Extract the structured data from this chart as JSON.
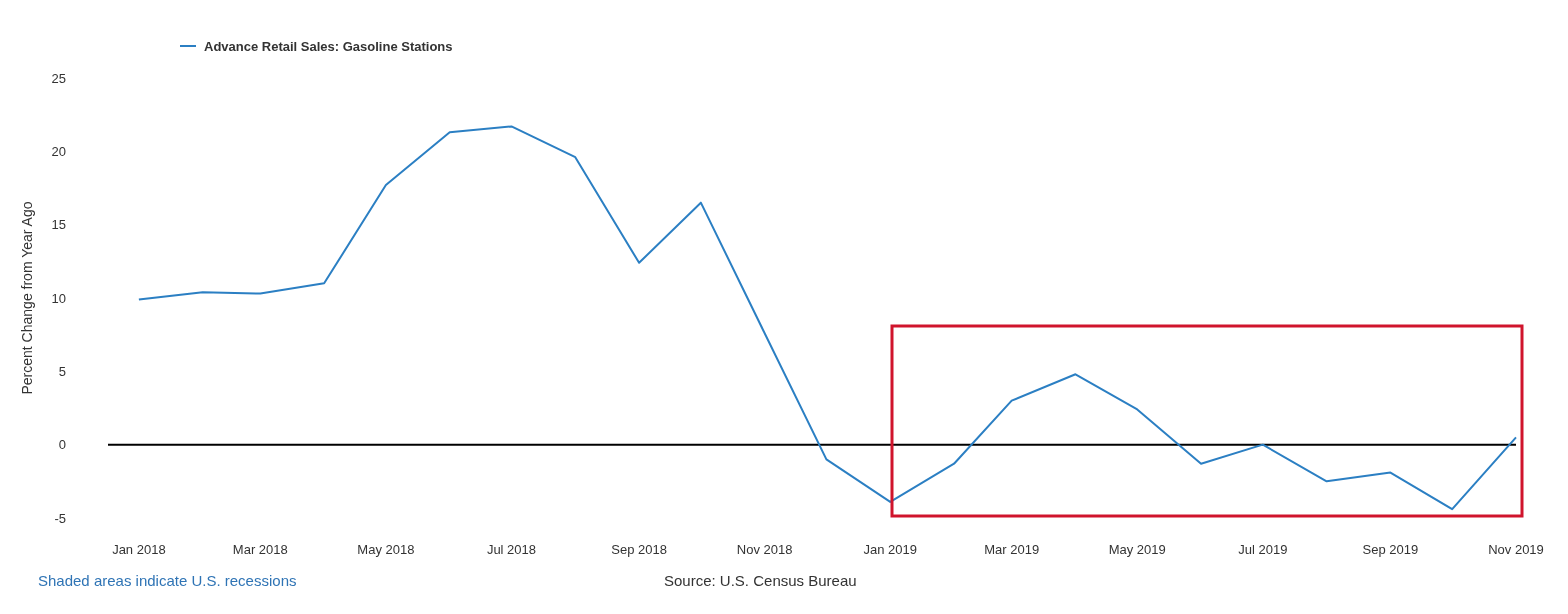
{
  "chart_data": {
    "type": "line",
    "ylabel": "Percent Change from Year Ago",
    "x": [
      "2018-01-01",
      "2018-02-01",
      "2018-03-01",
      "2018-04-01",
      "2018-05-01",
      "2018-06-01",
      "2018-07-01",
      "2018-08-01",
      "2018-09-01",
      "2018-10-01",
      "2018-11-01",
      "2018-12-01",
      "2019-01-01",
      "2019-02-01",
      "2019-03-01",
      "2019-04-01",
      "2019-05-01",
      "2019-06-01",
      "2019-07-01",
      "2019-08-01",
      "2019-09-01",
      "2019-10-01",
      "2019-11-01"
    ],
    "series": [
      {
        "name": "Advance Retail Sales: Gasoline Stations",
        "color": "#2b7fc3",
        "values": [
          9.9,
          10.4,
          10.3,
          11.0,
          17.7,
          21.3,
          21.7,
          19.6,
          12.4,
          16.5,
          7.6,
          -1.0,
          -3.9,
          -1.3,
          3.0,
          4.8,
          2.4,
          -1.3,
          0.0,
          -2.5,
          -1.9,
          -4.4,
          0.5
        ]
      }
    ],
    "xlim": [
      "2017-12-17",
      "2019-11-01"
    ],
    "xticks": [
      {
        "value": "2018-01-01",
        "label": "Jan 2018"
      },
      {
        "value": "2018-03-01",
        "label": "Mar 2018"
      },
      {
        "value": "2018-05-01",
        "label": "May 2018"
      },
      {
        "value": "2018-07-01",
        "label": "Jul 2018"
      },
      {
        "value": "2018-09-01",
        "label": "Sep 2018"
      },
      {
        "value": "2018-11-01",
        "label": "Nov 2018"
      },
      {
        "value": "2019-01-01",
        "label": "Jan 2019"
      },
      {
        "value": "2019-03-01",
        "label": "Mar 2019"
      },
      {
        "value": "2019-05-01",
        "label": "May 2019"
      },
      {
        "value": "2019-07-01",
        "label": "Jul 2019"
      },
      {
        "value": "2019-09-01",
        "label": "Sep 2019"
      },
      {
        "value": "2019-11-01",
        "label": "Nov 2019"
      }
    ],
    "ylim": [
      -5,
      25
    ],
    "yticks": [
      -5,
      0,
      5,
      10,
      15,
      20,
      25
    ],
    "ref_lines": [
      {
        "axis": "y",
        "value": 0,
        "color": "#000000"
      }
    ],
    "legend": "top left",
    "line_style": "solid",
    "marker": "none",
    "annotations": [
      "Shaded areas indicate U.S. recessions",
      "Source: U.S. Census Bureau"
    ]
  }
}
